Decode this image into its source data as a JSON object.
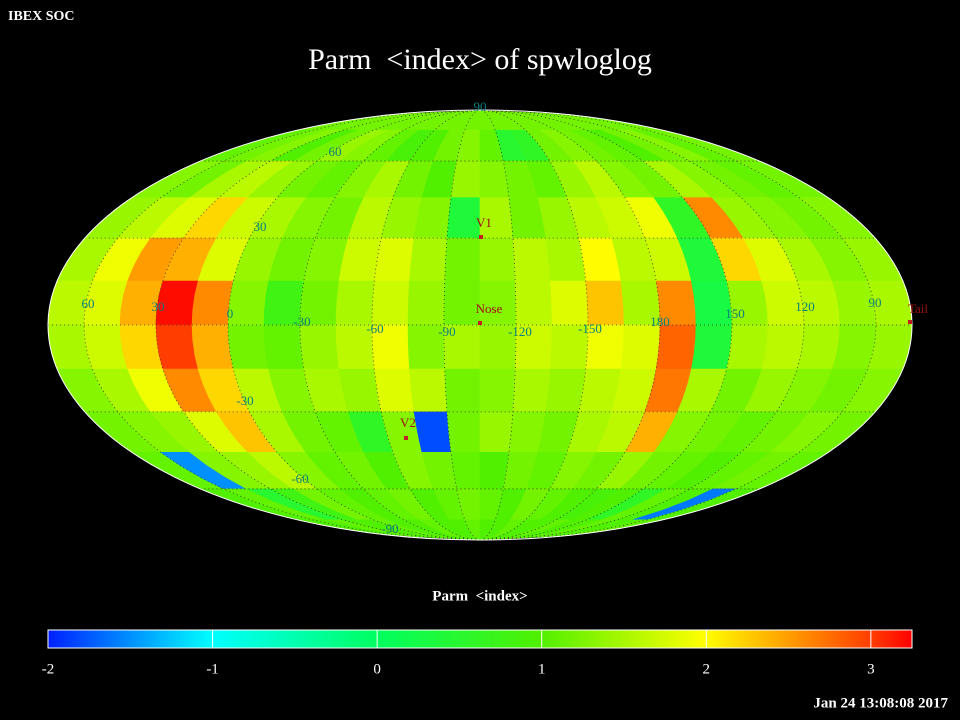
{
  "header": {
    "app": "IBEX SOC",
    "timestamp": "Jan 24 13:08:08 2017"
  },
  "map": {
    "title": "Parm  <index> of spwloglog",
    "lon_labels": [
      60,
      30,
      0,
      -30,
      -60,
      -90,
      -120,
      -150,
      180,
      150,
      120,
      90
    ],
    "lat_labels": [
      90,
      60,
      30,
      -30,
      -60,
      -90
    ],
    "markers": [
      {
        "label": "V1"
      },
      {
        "label": "Nose"
      },
      {
        "label": "V2"
      },
      {
        "label": "Tail"
      }
    ],
    "cells": [
      [
        1.2,
        1.2,
        1.2,
        1.2,
        1.2,
        1.2,
        1.2,
        1.2,
        1.2,
        1.2,
        1.2,
        1.2,
        1.2,
        1.2,
        1.2,
        1.2,
        1.2,
        1.2,
        1.2,
        1.2,
        1.2,
        1.2,
        1.2,
        1.2
      ],
      [
        1.1,
        1.2,
        1.3,
        1.0,
        1.2,
        1.4,
        1.3,
        1.1,
        0.9,
        1.0,
        1.2,
        1.3,
        1.1,
        0.5,
        0.6,
        1.2,
        1.3,
        1.2,
        1.1,
        1.0,
        1.2,
        1.3,
        1.1,
        1.2
      ],
      [
        1.3,
        1.2,
        1.5,
        1.6,
        1.4,
        1.2,
        1.1,
        1.3,
        1.5,
        1.2,
        1.0,
        1.4,
        1.3,
        1.2,
        1.1,
        1.4,
        1.6,
        1.3,
        1.2,
        1.5,
        1.3,
        1.2,
        1.1,
        1.2
      ],
      [
        1.4,
        1.6,
        1.8,
        2.2,
        1.7,
        1.5,
        1.3,
        1.2,
        1.6,
        1.4,
        1.3,
        0.4,
        1.5,
        1.2,
        1.4,
        1.6,
        1.7,
        1.9,
        0.6,
        2.6,
        1.4,
        1.3,
        1.2,
        1.3
      ],
      [
        1.5,
        1.9,
        2.5,
        2.4,
        1.8,
        1.4,
        1.2,
        1.3,
        1.7,
        1.8,
        1.5,
        1.2,
        1.4,
        1.6,
        1.5,
        2.0,
        1.6,
        1.7,
        0.4,
        2.2,
        1.8,
        1.5,
        1.3,
        1.4
      ],
      [
        1.6,
        1.8,
        2.4,
        3.2,
        2.6,
        1.3,
        0.8,
        1.2,
        1.5,
        1.7,
        1.4,
        1.2,
        1.3,
        1.6,
        1.8,
        2.3,
        1.5,
        2.6,
        0.3,
        1.4,
        1.7,
        1.6,
        1.4,
        1.5
      ],
      [
        1.5,
        1.7,
        2.2,
        3.0,
        2.4,
        1.2,
        1.1,
        1.4,
        1.6,
        1.9,
        1.3,
        1.5,
        1.4,
        1.7,
        1.6,
        1.9,
        1.8,
        2.8,
        0.4,
        1.5,
        1.6,
        1.5,
        1.3,
        1.4
      ],
      [
        1.3,
        1.5,
        1.9,
        2.6,
        2.2,
        1.6,
        1.3,
        1.5,
        1.4,
        1.8,
        1.6,
        1.2,
        1.3,
        1.5,
        1.4,
        1.6,
        1.7,
        2.7,
        1.5,
        1.2,
        1.4,
        1.3,
        1.2,
        1.3
      ],
      [
        1.2,
        1.3,
        1.4,
        1.8,
        2.3,
        1.5,
        1.2,
        1.1,
        0.6,
        1.3,
        -1.8,
        1.2,
        1.4,
        1.3,
        1.2,
        1.5,
        1.6,
        2.4,
        1.3,
        1.2,
        1.1,
        1.2,
        1.3,
        1.2
      ],
      [
        1.1,
        -1.5,
        1.3,
        1.4,
        1.6,
        1.3,
        1.1,
        1.2,
        1.0,
        1.3,
        1.2,
        1.1,
        1.0,
        1.2,
        1.1,
        1.3,
        1.2,
        1.4,
        1.2,
        1.1,
        1.0,
        1.1,
        1.2,
        1.1
      ],
      [
        1.0,
        1.1,
        0.5,
        0.8,
        1.2,
        1.1,
        1.0,
        1.1,
        1.2,
        1.0,
        1.1,
        1.2,
        1.1,
        1.0,
        1.2,
        1.1,
        1.0,
        0.9,
        1.0,
        0.6,
        1.1,
        1.0,
        -1.6,
        1.0
      ],
      [
        1.0,
        1.0,
        1.1,
        1.0,
        1.0,
        1.1,
        1.0,
        1.0,
        1.1,
        1.0,
        1.0,
        1.1,
        1.0,
        1.0,
        1.1,
        1.0,
        1.0,
        1.1,
        1.0,
        1.0,
        1.1,
        1.0,
        1.0,
        1.1
      ]
    ]
  },
  "colorbar": {
    "label": "Parm  <index>",
    "lim": [
      -2,
      3.25
    ],
    "ticks": [
      -2,
      -1,
      0,
      1,
      2,
      3
    ]
  }
}
